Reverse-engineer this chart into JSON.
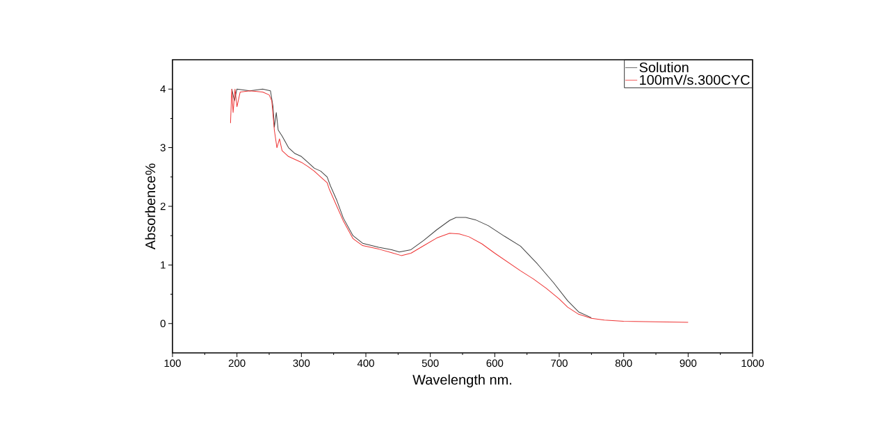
{
  "chart_data": {
    "type": "line",
    "xlabel": "Wavelength nm.",
    "ylabel": "Absorbence%",
    "xlim": [
      100,
      1000
    ],
    "ylim": [
      -0.5,
      4.5
    ],
    "xticks": [
      100,
      200,
      300,
      400,
      500,
      600,
      700,
      800,
      900,
      1000
    ],
    "yticks": [
      0,
      1,
      2,
      3,
      4
    ],
    "legend": "top right",
    "grid": false,
    "marker": "none",
    "line_style": "solid",
    "series": [
      {
        "name": "Solution",
        "color": "#404040",
        "x": [
          192,
          196,
          200,
          220,
          240,
          252,
          256,
          258,
          261,
          264,
          270,
          280,
          290,
          300,
          310,
          320,
          330,
          340,
          345,
          355,
          365,
          380,
          395,
          420,
          440,
          452,
          470,
          490,
          510,
          530,
          540,
          555,
          570,
          590,
          615,
          640,
          666,
          691,
          713,
          730,
          750
        ],
        "values": [
          4.0,
          3.8,
          4.0,
          3.97,
          4.0,
          3.97,
          3.7,
          3.35,
          3.6,
          3.3,
          3.2,
          3.0,
          2.9,
          2.85,
          2.75,
          2.65,
          2.6,
          2.5,
          2.35,
          2.1,
          1.8,
          1.5,
          1.37,
          1.3,
          1.26,
          1.22,
          1.26,
          1.42,
          1.6,
          1.76,
          1.81,
          1.81,
          1.77,
          1.67,
          1.49,
          1.32,
          1.02,
          0.7,
          0.39,
          0.2,
          0.1
        ]
      },
      {
        "name": "100mV/s.300CYC",
        "color": "#ee3333",
        "x": [
          190,
          192,
          194,
          197,
          200,
          205,
          220,
          240,
          250,
          254,
          258,
          262,
          266,
          270,
          280,
          290,
          300,
          310,
          320,
          330,
          340,
          343,
          355,
          365,
          380,
          395,
          420,
          440,
          455,
          470,
          490,
          510,
          530,
          545,
          560,
          580,
          600,
          620,
          640,
          660,
          680,
          700,
          713,
          730,
          750,
          770,
          800,
          900
        ],
        "values": [
          3.42,
          4.0,
          3.6,
          4.0,
          3.7,
          3.95,
          3.97,
          3.95,
          3.9,
          3.8,
          3.3,
          3.0,
          3.15,
          2.95,
          2.85,
          2.8,
          2.75,
          2.68,
          2.6,
          2.5,
          2.4,
          2.3,
          2.0,
          1.75,
          1.45,
          1.33,
          1.27,
          1.21,
          1.16,
          1.2,
          1.33,
          1.46,
          1.54,
          1.53,
          1.48,
          1.36,
          1.2,
          1.05,
          0.9,
          0.76,
          0.6,
          0.42,
          0.28,
          0.16,
          0.09,
          0.06,
          0.04,
          0.02
        ]
      }
    ]
  }
}
